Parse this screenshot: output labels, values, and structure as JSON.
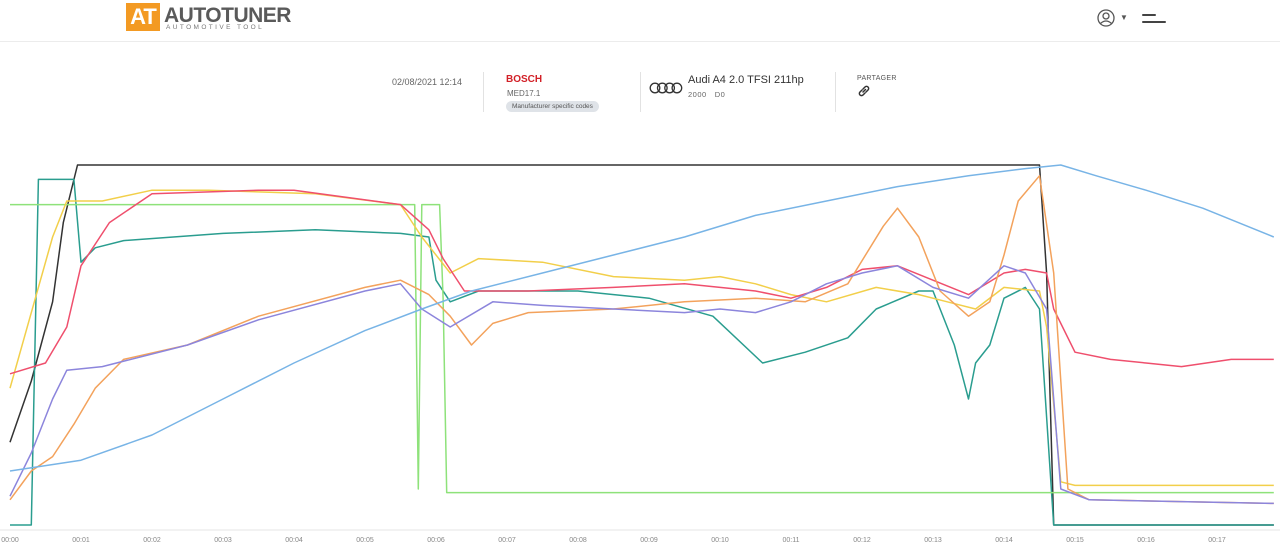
{
  "header": {
    "logo_mark": "AT",
    "logo_name_auto": "AUTO",
    "logo_name_tuner": "TUNER",
    "logo_tagline": "AUTOMOTIVE TOOL"
  },
  "info": {
    "date": "02/08/2021 12:14",
    "ecu_brand": "BOSCH",
    "ecu_model": "MED17.1",
    "ecu_badge": "Manufacturer specific codes",
    "car_name": "Audi A4 2.0 TFSI 211hp",
    "car_year": "2000",
    "car_code": "D0",
    "share_label": "PARTAGER"
  },
  "icons": {
    "logo": "autotuner-logo",
    "user": "user-circle-icon",
    "caret": "chevron-down-icon",
    "menu": "hamburger-icon",
    "car": "audi-rings-icon",
    "share": "link-icon"
  },
  "colors": {
    "accent": "#f39a23",
    "brand_red": "#d22027",
    "black": "#333333",
    "teal": "#2a9d8f",
    "light_green": "#8ee27a",
    "yellow": "#f2cf4a",
    "red": "#ef4f6d",
    "orange": "#f3a25c",
    "purple": "#8c85dc",
    "blue": "#78b4e6"
  },
  "chart_data": {
    "type": "line",
    "x_ticks": [
      "00:00",
      "00:01",
      "00:02",
      "00:03",
      "00:04",
      "00:05",
      "00:06",
      "00:07",
      "00:08",
      "00:09",
      "00:10",
      "00:11",
      "00:12",
      "00:13",
      "00:14",
      "00:15",
      "00:16",
      "00:17"
    ],
    "xlim": [
      0,
      17.8
    ],
    "ylim": [
      0,
      100
    ],
    "grid": false,
    "legend": "none",
    "series": [
      {
        "color": "#333333",
        "points": [
          [
            0,
            23
          ],
          [
            0.3,
            40
          ],
          [
            0.6,
            62
          ],
          [
            0.75,
            84
          ],
          [
            0.95,
            100
          ],
          [
            1.1,
            100
          ],
          [
            14.5,
            100
          ],
          [
            14.6,
            70
          ],
          [
            14.7,
            0
          ],
          [
            17.8,
            0
          ]
        ]
      },
      {
        "color": "#2a9d8f",
        "points": [
          [
            0,
            0
          ],
          [
            0.3,
            0
          ],
          [
            0.4,
            96
          ],
          [
            0.9,
            96
          ],
          [
            1.0,
            73
          ],
          [
            1.2,
            77
          ],
          [
            1.6,
            79
          ],
          [
            3.0,
            81
          ],
          [
            4.3,
            82
          ],
          [
            5.5,
            81
          ],
          [
            5.9,
            80
          ],
          [
            6.0,
            68
          ],
          [
            6.2,
            62
          ],
          [
            6.6,
            65
          ],
          [
            7.0,
            65
          ],
          [
            8.0,
            65
          ],
          [
            9.0,
            63
          ],
          [
            9.9,
            58
          ],
          [
            10.6,
            45
          ],
          [
            11.2,
            48
          ],
          [
            11.8,
            52
          ],
          [
            12.2,
            60
          ],
          [
            12.8,
            65
          ],
          [
            13.0,
            65
          ],
          [
            13.3,
            50
          ],
          [
            13.5,
            35
          ],
          [
            13.6,
            45
          ],
          [
            13.8,
            50
          ],
          [
            14.0,
            63
          ],
          [
            14.3,
            66
          ],
          [
            14.5,
            60
          ],
          [
            14.6,
            30
          ],
          [
            14.7,
            0
          ],
          [
            17.8,
            0
          ]
        ]
      },
      {
        "color": "#8ee27a",
        "points": [
          [
            0,
            89
          ],
          [
            5.7,
            89
          ],
          [
            5.75,
            10
          ],
          [
            5.8,
            89
          ],
          [
            6.05,
            89
          ],
          [
            6.1,
            63
          ],
          [
            6.15,
            9
          ],
          [
            14.6,
            9
          ],
          [
            17.8,
            9
          ]
        ]
      },
      {
        "color": "#f2cf4a",
        "points": [
          [
            0,
            38
          ],
          [
            0.6,
            80
          ],
          [
            0.8,
            90
          ],
          [
            1.3,
            90
          ],
          [
            2.0,
            93
          ],
          [
            2.8,
            93
          ],
          [
            4.3,
            92
          ],
          [
            5.5,
            89
          ],
          [
            5.8,
            80
          ],
          [
            6.2,
            70
          ],
          [
            6.6,
            74
          ],
          [
            7.5,
            73
          ],
          [
            8.5,
            69
          ],
          [
            9.5,
            68
          ],
          [
            10.0,
            69
          ],
          [
            10.5,
            67
          ],
          [
            11.0,
            64
          ],
          [
            11.5,
            62
          ],
          [
            12.2,
            66
          ],
          [
            12.8,
            64
          ],
          [
            13.2,
            62
          ],
          [
            13.6,
            60
          ],
          [
            14.0,
            66
          ],
          [
            14.5,
            65
          ],
          [
            14.6,
            55
          ],
          [
            14.8,
            12
          ],
          [
            15.0,
            11
          ],
          [
            17.8,
            11
          ]
        ]
      },
      {
        "color": "#ef4f6d",
        "points": [
          [
            0,
            42
          ],
          [
            0.5,
            45
          ],
          [
            0.8,
            55
          ],
          [
            1.0,
            72
          ],
          [
            1.4,
            84
          ],
          [
            2.0,
            92
          ],
          [
            3.5,
            93
          ],
          [
            4.0,
            93
          ],
          [
            5.5,
            89
          ],
          [
            5.9,
            82
          ],
          [
            6.1,
            74
          ],
          [
            6.4,
            65
          ],
          [
            6.7,
            65
          ],
          [
            7.3,
            65
          ],
          [
            8.5,
            66
          ],
          [
            9.5,
            67
          ],
          [
            10.5,
            65
          ],
          [
            11.0,
            63
          ],
          [
            11.5,
            66
          ],
          [
            12.0,
            71
          ],
          [
            12.5,
            72
          ],
          [
            13.0,
            68
          ],
          [
            13.5,
            64
          ],
          [
            14.0,
            70
          ],
          [
            14.3,
            71
          ],
          [
            14.6,
            70
          ],
          [
            14.7,
            60
          ],
          [
            15.0,
            48
          ],
          [
            15.5,
            46
          ],
          [
            16.0,
            45
          ],
          [
            16.5,
            44
          ],
          [
            17.2,
            46
          ],
          [
            17.8,
            46
          ]
        ]
      },
      {
        "color": "#f3a25c",
        "points": [
          [
            0,
            7
          ],
          [
            0.3,
            15
          ],
          [
            0.6,
            19
          ],
          [
            0.9,
            28
          ],
          [
            1.2,
            38
          ],
          [
            1.6,
            46
          ],
          [
            2.5,
            50
          ],
          [
            3.5,
            58
          ],
          [
            5.0,
            66
          ],
          [
            5.5,
            68
          ],
          [
            5.9,
            64
          ],
          [
            6.2,
            58
          ],
          [
            6.5,
            50
          ],
          [
            6.8,
            56
          ],
          [
            7.3,
            59
          ],
          [
            8.5,
            60
          ],
          [
            9.5,
            62
          ],
          [
            10.5,
            63
          ],
          [
            11.2,
            62
          ],
          [
            11.8,
            67
          ],
          [
            12.3,
            83
          ],
          [
            12.5,
            88
          ],
          [
            12.8,
            80
          ],
          [
            13.1,
            65
          ],
          [
            13.5,
            58
          ],
          [
            13.8,
            62
          ],
          [
            14.0,
            75
          ],
          [
            14.2,
            90
          ],
          [
            14.5,
            97
          ],
          [
            14.7,
            70
          ],
          [
            14.9,
            10
          ],
          [
            15.2,
            7
          ],
          [
            17.8,
            6
          ]
        ]
      },
      {
        "color": "#8c85dc",
        "points": [
          [
            0,
            8
          ],
          [
            0.3,
            20
          ],
          [
            0.6,
            35
          ],
          [
            0.8,
            43
          ],
          [
            1.3,
            44
          ],
          [
            2.5,
            50
          ],
          [
            3.5,
            57
          ],
          [
            5.0,
            65
          ],
          [
            5.5,
            67
          ],
          [
            5.8,
            60
          ],
          [
            6.2,
            55
          ],
          [
            6.8,
            62
          ],
          [
            7.5,
            61
          ],
          [
            8.5,
            60
          ],
          [
            9.5,
            59
          ],
          [
            10.0,
            60
          ],
          [
            10.5,
            59
          ],
          [
            11.0,
            62
          ],
          [
            11.5,
            67
          ],
          [
            12.0,
            70
          ],
          [
            12.5,
            72
          ],
          [
            13.0,
            66
          ],
          [
            13.5,
            63
          ],
          [
            14.0,
            72
          ],
          [
            14.3,
            70
          ],
          [
            14.6,
            60
          ],
          [
            14.8,
            10
          ],
          [
            15.2,
            7
          ],
          [
            17.8,
            6
          ]
        ]
      },
      {
        "color": "#78b4e6",
        "points": [
          [
            0,
            15
          ],
          [
            1.0,
            18
          ],
          [
            2.0,
            25
          ],
          [
            3.0,
            35
          ],
          [
            4.0,
            45
          ],
          [
            5.0,
            54
          ],
          [
            5.8,
            60
          ],
          [
            6.5,
            65
          ],
          [
            7.5,
            70
          ],
          [
            8.5,
            75
          ],
          [
            9.5,
            80
          ],
          [
            10.5,
            86
          ],
          [
            11.5,
            90
          ],
          [
            12.5,
            94
          ],
          [
            13.5,
            97
          ],
          [
            14.3,
            99
          ],
          [
            14.8,
            100
          ],
          [
            15.3,
            97
          ],
          [
            16.0,
            93
          ],
          [
            16.8,
            88
          ],
          [
            17.3,
            84
          ],
          [
            17.8,
            80
          ]
        ]
      }
    ]
  }
}
